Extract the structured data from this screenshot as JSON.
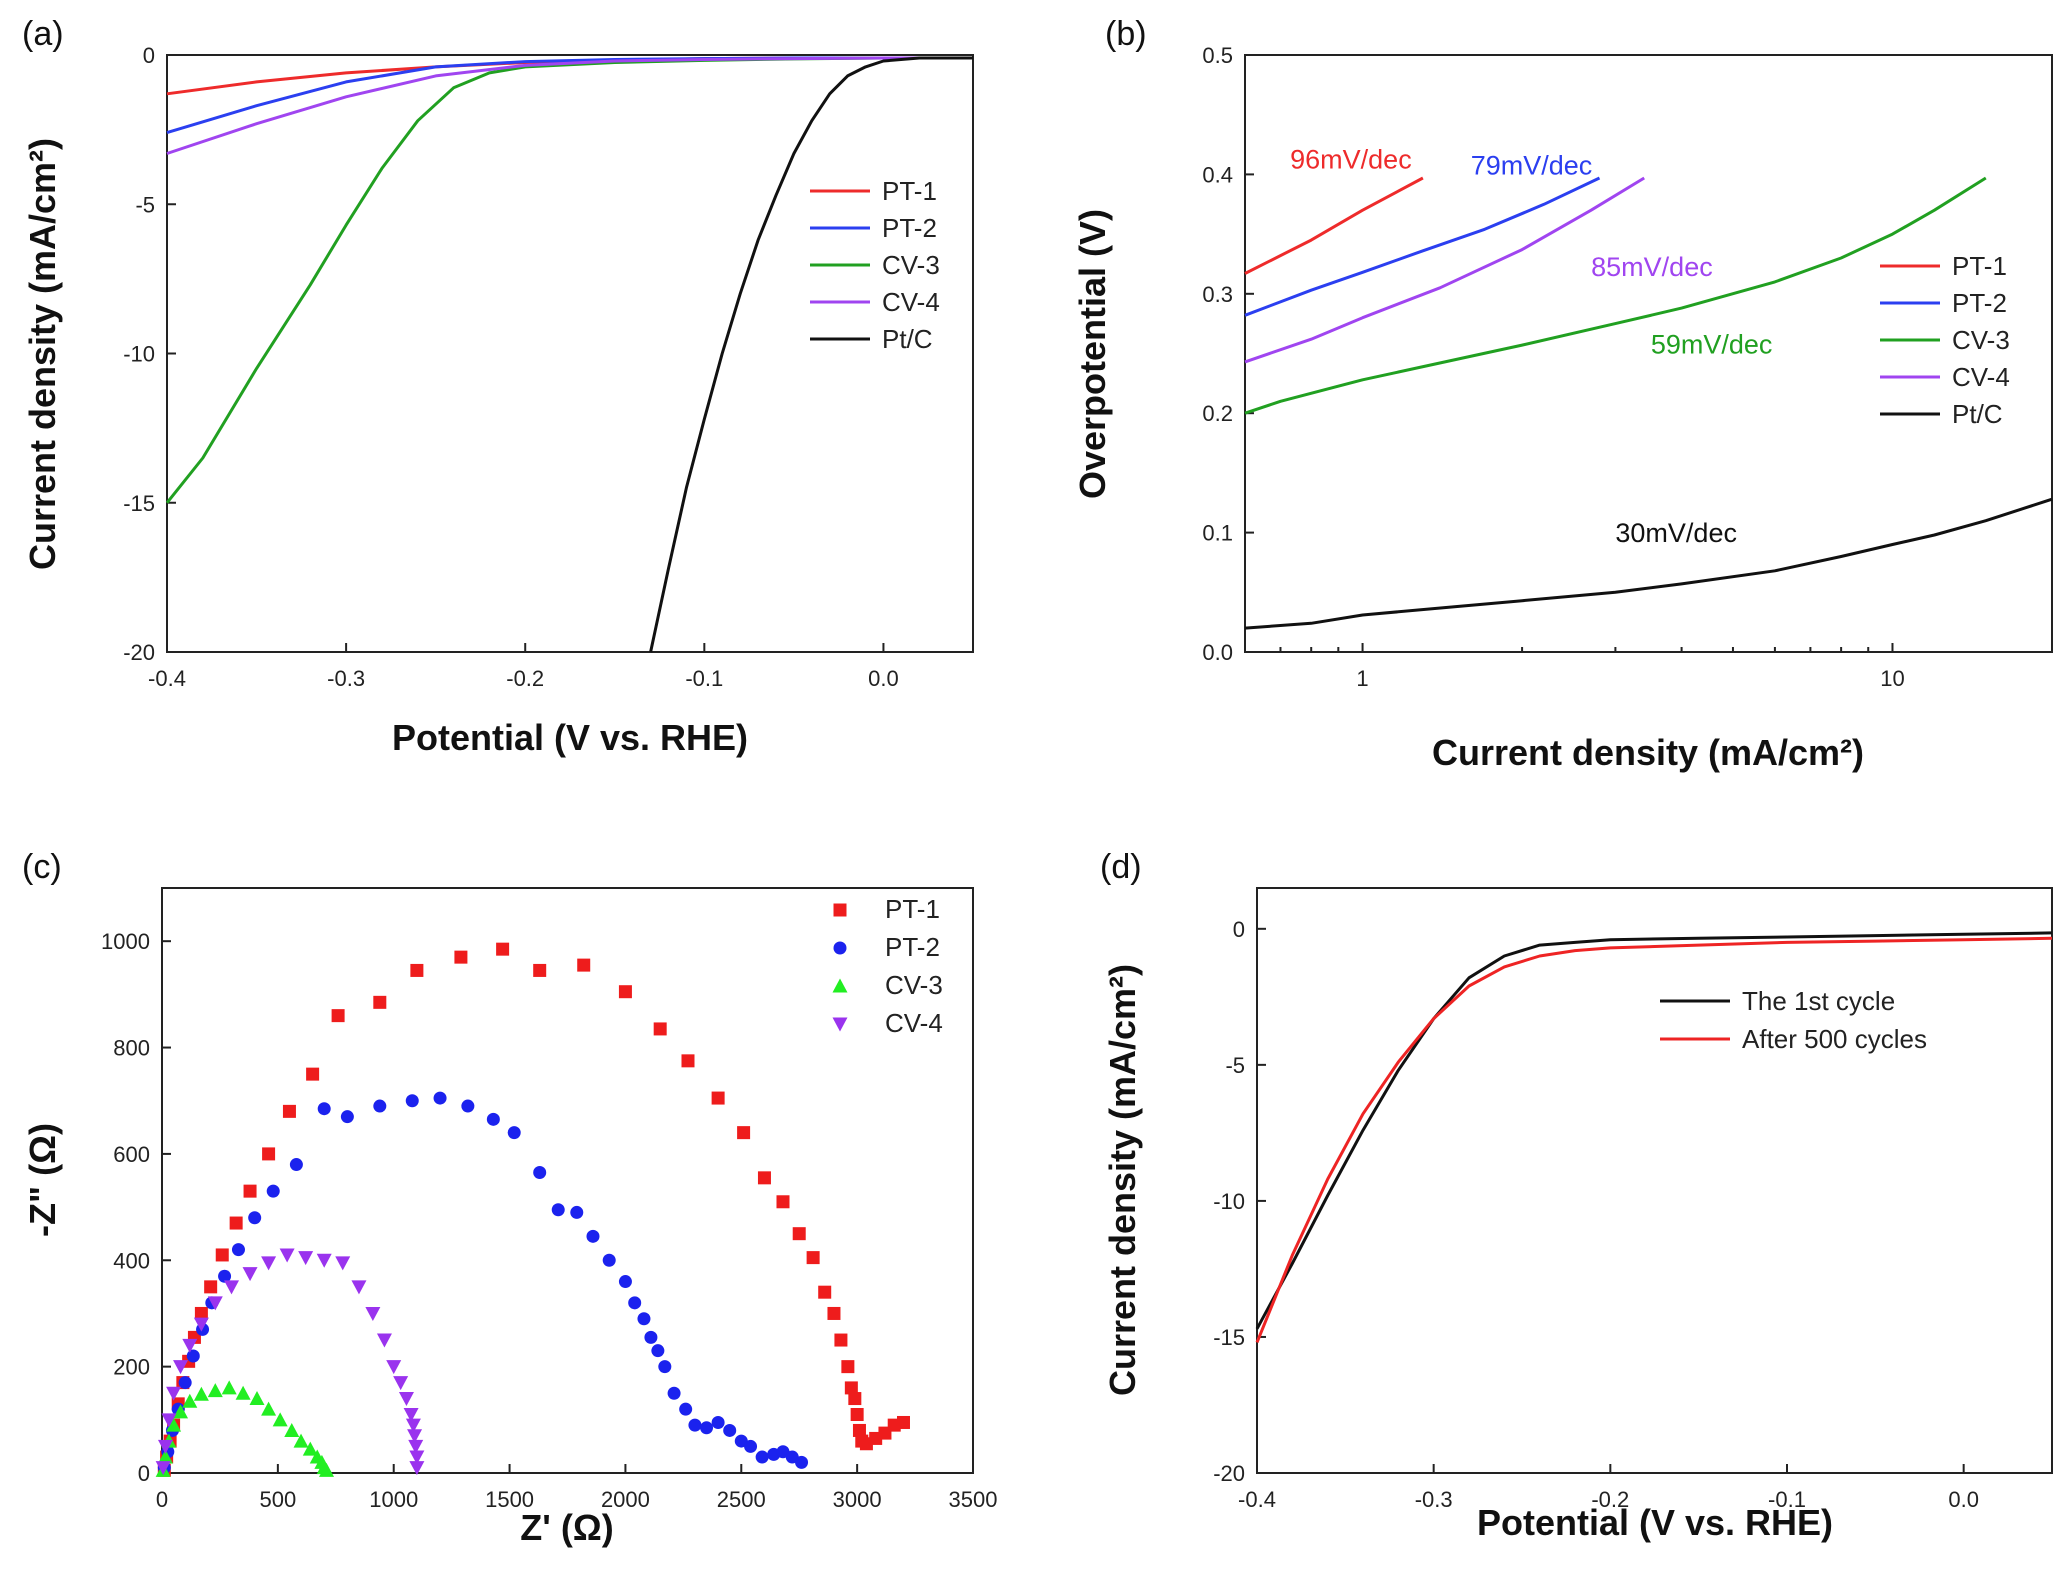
{
  "colors": {
    "PT-1": "#ee2b2b",
    "PT-2": "#2b3ff0",
    "CV-3": "#21a021",
    "CV-4": "#a045f0",
    "Pt/C": "#111111",
    "PT-1-eis": "#ee1c1c",
    "PT-2-eis": "#1b22ee",
    "CV-3-eis": "#22ee22",
    "CV-4-eis": "#9a33ee",
    "first-cycle": "#111111",
    "after-500": "#ee2424"
  },
  "panels": {
    "a": {
      "label": "(a)"
    },
    "b": {
      "label": "(b)"
    },
    "c": {
      "label": "(c)"
    },
    "d": {
      "label": "(d)"
    }
  },
  "chart_data": [
    {
      "id": "a",
      "type": "line",
      "xlabel": "Potential (V vs. RHE)",
      "ylabel": "Current density (mA/cm²)",
      "xlim": [
        -0.4,
        0.05
      ],
      "ylim": [
        -20,
        0
      ],
      "xticks": [
        -0.4,
        -0.3,
        -0.2,
        -0.1,
        0.0
      ],
      "xtick_labels": [
        "-0.4",
        "-0.3",
        "-0.2",
        "-0.1",
        "0.0"
      ],
      "yticks": [
        0,
        -5,
        -10,
        -15,
        -20
      ],
      "ytick_labels": [
        "0",
        "-5",
        "-10",
        "-15",
        "-20"
      ],
      "legend": {
        "position": "right",
        "entries": [
          "PT-1",
          "PT-2",
          "CV-3",
          "CV-4",
          "Pt/C"
        ]
      },
      "series": [
        {
          "name": "PT-1",
          "x": [
            -0.4,
            -0.35,
            -0.3,
            -0.25,
            -0.2,
            -0.15,
            -0.1,
            -0.05,
            0.0,
            0.05
          ],
          "y": [
            -1.3,
            -0.9,
            -0.6,
            -0.4,
            -0.25,
            -0.18,
            -0.12,
            -0.1,
            -0.1,
            -0.1
          ]
        },
        {
          "name": "PT-2",
          "x": [
            -0.4,
            -0.35,
            -0.3,
            -0.25,
            -0.2,
            -0.15,
            -0.1,
            -0.05,
            0.0,
            0.05
          ],
          "y": [
            -2.6,
            -1.7,
            -0.9,
            -0.4,
            -0.22,
            -0.15,
            -0.12,
            -0.1,
            -0.1,
            -0.1
          ]
        },
        {
          "name": "CV-3",
          "x": [
            -0.4,
            -0.38,
            -0.35,
            -0.32,
            -0.3,
            -0.28,
            -0.26,
            -0.24,
            -0.22,
            -0.2,
            -0.15,
            -0.1,
            -0.05,
            0.0,
            0.05
          ],
          "y": [
            -15.0,
            -13.5,
            -10.5,
            -7.7,
            -5.7,
            -3.8,
            -2.2,
            -1.1,
            -0.6,
            -0.4,
            -0.25,
            -0.18,
            -0.13,
            -0.1,
            -0.1
          ]
        },
        {
          "name": "CV-4",
          "x": [
            -0.4,
            -0.35,
            -0.3,
            -0.25,
            -0.2,
            -0.15,
            -0.1,
            -0.05,
            0.0,
            0.05
          ],
          "y": [
            -3.3,
            -2.3,
            -1.4,
            -0.7,
            -0.35,
            -0.2,
            -0.15,
            -0.12,
            -0.1,
            -0.1
          ]
        },
        {
          "name": "Pt/C",
          "x": [
            -0.13,
            -0.12,
            -0.11,
            -0.1,
            -0.09,
            -0.08,
            -0.07,
            -0.06,
            -0.05,
            -0.04,
            -0.03,
            -0.02,
            -0.01,
            0.0,
            0.02,
            0.05
          ],
          "y": [
            -20.0,
            -17.2,
            -14.5,
            -12.2,
            -10.0,
            -8.0,
            -6.2,
            -4.7,
            -3.3,
            -2.2,
            -1.3,
            -0.7,
            -0.4,
            -0.2,
            -0.1,
            -0.1
          ]
        }
      ]
    },
    {
      "id": "b",
      "type": "line",
      "xlabel": "Current density (mA/cm²)",
      "ylabel": "Overpotential (V)",
      "xscale": "log",
      "xlim": [
        0.6,
        20
      ],
      "ylim": [
        0,
        0.5
      ],
      "xticks": [
        1,
        10
      ],
      "xtick_labels": [
        "1",
        "10"
      ],
      "yticks": [
        0,
        0.1,
        0.2,
        0.3,
        0.4,
        0.5
      ],
      "ytick_labels": [
        "0.0",
        "0.1",
        "0.2",
        "0.3",
        "0.4",
        "0.5"
      ],
      "legend": {
        "position": "right",
        "entries": [
          "PT-1",
          "PT-2",
          "CV-3",
          "CV-4",
          "Pt/C"
        ]
      },
      "annotations": [
        {
          "text": "96mV/dec",
          "series": "PT-1",
          "x": 0.73,
          "y": 0.405
        },
        {
          "text": "79mV/dec",
          "series": "PT-2",
          "x": 1.6,
          "y": 0.4
        },
        {
          "text": "85mV/dec",
          "series": "CV-4",
          "x": 2.7,
          "y": 0.315
        },
        {
          "text": "59mV/dec",
          "series": "CV-3",
          "x": 3.5,
          "y": 0.25
        },
        {
          "text": "30mV/dec",
          "series": "Pt/C",
          "x": 3.0,
          "y": 0.092
        }
      ],
      "series": [
        {
          "name": "PT-1",
          "x": [
            0.6,
            0.8,
            1.0,
            1.3
          ],
          "y": [
            0.317,
            0.345,
            0.37,
            0.397
          ]
        },
        {
          "name": "PT-2",
          "x": [
            0.6,
            0.8,
            1.0,
            1.3,
            1.7,
            2.2,
            2.8
          ],
          "y": [
            0.282,
            0.303,
            0.318,
            0.336,
            0.354,
            0.375,
            0.397
          ]
        },
        {
          "name": "CV-3",
          "x": [
            0.6,
            0.7,
            1.0,
            1.5,
            2.0,
            3.0,
            4.0,
            6.0,
            8.0,
            10.0,
            12.0,
            15.0
          ],
          "y": [
            0.2,
            0.21,
            0.228,
            0.245,
            0.257,
            0.275,
            0.288,
            0.31,
            0.33,
            0.35,
            0.37,
            0.397
          ]
        },
        {
          "name": "CV-4",
          "x": [
            0.6,
            0.8,
            1.0,
            1.4,
            2.0,
            2.7,
            3.4
          ],
          "y": [
            0.243,
            0.262,
            0.28,
            0.305,
            0.337,
            0.37,
            0.397
          ]
        },
        {
          "name": "Pt/C",
          "x": [
            0.6,
            0.8,
            1.0,
            1.5,
            2.0,
            3.0,
            4.0,
            6.0,
            8.0,
            10.0,
            12.0,
            15.0,
            20.0
          ],
          "y": [
            0.02,
            0.024,
            0.031,
            0.038,
            0.043,
            0.05,
            0.057,
            0.068,
            0.08,
            0.09,
            0.098,
            0.11,
            0.128
          ]
        }
      ]
    },
    {
      "id": "c",
      "type": "scatter",
      "xlabel": "Z' (Ω)",
      "ylabel": "-Z\" (Ω)",
      "xlim": [
        0,
        3500
      ],
      "ylim": [
        0,
        1100
      ],
      "xticks": [
        0,
        500,
        1000,
        1500,
        2000,
        2500,
        3000,
        3500
      ],
      "xtick_labels": [
        "0",
        "500",
        "1000",
        "1500",
        "2000",
        "2500",
        "3000",
        "3500"
      ],
      "yticks": [
        0,
        200,
        400,
        600,
        800,
        1000
      ],
      "ytick_labels": [
        "0",
        "200",
        "400",
        "600",
        "800",
        "1000"
      ],
      "legend": {
        "position": "top-right",
        "entries": [
          "PT-1",
          "PT-2",
          "CV-3",
          "CV-4"
        ]
      },
      "series": [
        {
          "name": "PT-1",
          "marker": "square",
          "x": [
            10,
            20,
            35,
            50,
            70,
            90,
            115,
            140,
            170,
            210,
            260,
            320,
            380,
            460,
            550,
            650,
            760,
            940,
            1100,
            1290,
            1470,
            1630,
            1820,
            2000,
            2150,
            2270,
            2400,
            2510,
            2600,
            2680,
            2750,
            2810,
            2860,
            2900,
            2930,
            2960,
            2975,
            2990,
            3000,
            3010,
            3020,
            3040,
            3080,
            3120,
            3160,
            3200
          ],
          "y": [
            5,
            30,
            60,
            90,
            130,
            170,
            210,
            255,
            300,
            350,
            410,
            470,
            530,
            600,
            680,
            750,
            860,
            885,
            945,
            970,
            985,
            945,
            955,
            905,
            835,
            775,
            705,
            640,
            555,
            510,
            450,
            405,
            340,
            300,
            250,
            200,
            160,
            140,
            110,
            80,
            60,
            55,
            65,
            75,
            90,
            95
          ]
        },
        {
          "name": "PT-2",
          "marker": "circle",
          "x": [
            10,
            25,
            45,
            70,
            100,
            135,
            175,
            215,
            270,
            330,
            400,
            480,
            580,
            700,
            800,
            940,
            1080,
            1200,
            1320,
            1430,
            1520,
            1630,
            1710,
            1790,
            1860,
            1930,
            2000,
            2040,
            2080,
            2110,
            2140,
            2170,
            2210,
            2260,
            2300,
            2350,
            2400,
            2450,
            2500,
            2540,
            2590,
            2640,
            2680,
            2720,
            2760
          ],
          "y": [
            10,
            40,
            80,
            120,
            170,
            220,
            270,
            320,
            370,
            420,
            480,
            530,
            580,
            685,
            670,
            690,
            700,
            705,
            690,
            665,
            640,
            565,
            495,
            490,
            445,
            400,
            360,
            320,
            290,
            255,
            230,
            200,
            150,
            120,
            90,
            85,
            95,
            80,
            60,
            50,
            30,
            35,
            40,
            30,
            20
          ]
        },
        {
          "name": "CV-3",
          "marker": "triangle",
          "x": [
            5,
            15,
            30,
            50,
            80,
            120,
            170,
            230,
            290,
            350,
            410,
            460,
            510,
            560,
            600,
            640,
            670,
            690,
            700,
            710
          ],
          "y": [
            5,
            30,
            60,
            90,
            115,
            135,
            148,
            155,
            160,
            150,
            140,
            120,
            100,
            80,
            60,
            45,
            30,
            20,
            10,
            5
          ]
        },
        {
          "name": "CV-4",
          "marker": "triangle-down",
          "x": [
            5,
            15,
            30,
            50,
            80,
            120,
            170,
            230,
            300,
            380,
            460,
            540,
            620,
            700,
            780,
            850,
            910,
            960,
            1000,
            1030,
            1055,
            1075,
            1085,
            1090,
            1095,
            1100,
            1100
          ],
          "y": [
            10,
            50,
            100,
            150,
            200,
            240,
            280,
            320,
            350,
            375,
            395,
            410,
            405,
            400,
            395,
            350,
            300,
            250,
            200,
            170,
            140,
            110,
            90,
            70,
            50,
            30,
            10
          ]
        }
      ]
    },
    {
      "id": "d",
      "type": "line",
      "xlabel": "Potential (V vs. RHE)",
      "ylabel": "Current density (mA/cm²)",
      "xlim": [
        -0.4,
        0.05
      ],
      "ylim": [
        -20,
        1.5
      ],
      "xticks": [
        -0.4,
        -0.3,
        -0.2,
        -0.1,
        0.0
      ],
      "xtick_labels": [
        "-0.4",
        "-0.3",
        "-0.2",
        "-0.1",
        "0.0"
      ],
      "yticks": [
        0,
        -5,
        -10,
        -15,
        -20
      ],
      "ytick_labels": [
        "0",
        "-5",
        "-10",
        "-15",
        "-20"
      ],
      "legend": {
        "position": "right",
        "entries": [
          "The 1st cycle",
          "After 500 cycles"
        ]
      },
      "series": [
        {
          "name": "The 1st cycle",
          "x": [
            -0.4,
            -0.38,
            -0.36,
            -0.34,
            -0.32,
            -0.3,
            -0.28,
            -0.26,
            -0.24,
            -0.22,
            -0.2,
            -0.15,
            -0.1,
            -0.05,
            0.0,
            0.05
          ],
          "y": [
            -14.7,
            -12.3,
            -9.8,
            -7.4,
            -5.2,
            -3.3,
            -1.8,
            -1.0,
            -0.6,
            -0.5,
            -0.4,
            -0.35,
            -0.3,
            -0.25,
            -0.2,
            -0.15
          ]
        },
        {
          "name": "After 500 cycles",
          "x": [
            -0.4,
            -0.38,
            -0.36,
            -0.34,
            -0.32,
            -0.3,
            -0.28,
            -0.26,
            -0.24,
            -0.22,
            -0.2,
            -0.15,
            -0.1,
            -0.05,
            0.0,
            0.05
          ],
          "y": [
            -15.2,
            -12.0,
            -9.2,
            -6.8,
            -4.9,
            -3.3,
            -2.1,
            -1.4,
            -1.0,
            -0.8,
            -0.7,
            -0.6,
            -0.5,
            -0.45,
            -0.4,
            -0.35
          ]
        }
      ]
    }
  ]
}
